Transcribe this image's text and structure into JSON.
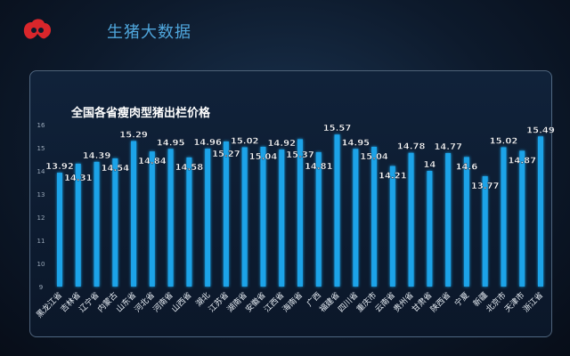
{
  "header": {
    "brand_title": "生猪大数据"
  },
  "colors": {
    "bar": "#1aa3e8",
    "bar_glow": "#38c4ff",
    "label": "#ffffff",
    "axis_text": "#9aa8b8",
    "brand": "#4fa6dc",
    "logo": "#d9262b"
  },
  "chart_data": {
    "type": "bar",
    "title": "全国各省瘦肉型猪出栏价格",
    "xlabel": "",
    "ylabel": "",
    "ylim": [
      9,
      16
    ],
    "yticks": [
      9,
      10,
      11,
      12,
      13,
      14,
      15,
      16
    ],
    "grid": false,
    "categories": [
      "黑龙江省",
      "吉林省",
      "辽宁省",
      "内蒙古",
      "山东省",
      "河北省",
      "河南省",
      "山西省",
      "湖北",
      "江苏省",
      "湖南省",
      "安徽省",
      "江西省",
      "海南省",
      "广西",
      "福建省",
      "四川省",
      "重庆市",
      "云南省",
      "贵州省",
      "甘肃省",
      "陕西省",
      "宁夏",
      "新疆",
      "北京市",
      "天津市",
      "浙江省"
    ],
    "values": [
      13.92,
      14.31,
      14.39,
      14.54,
      15.29,
      14.84,
      14.95,
      14.58,
      14.96,
      15.27,
      15.02,
      15.04,
      14.92,
      15.37,
      14.81,
      15.57,
      14.95,
      15.04,
      14.21,
      14.78,
      14,
      14.77,
      14.6,
      13.77,
      15.02,
      14.87,
      15.49
    ]
  }
}
